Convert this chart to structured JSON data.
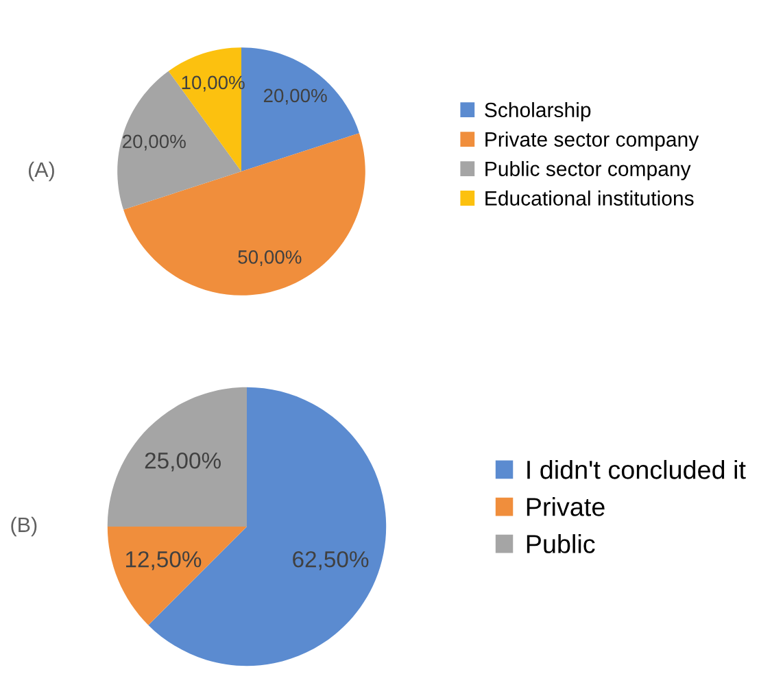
{
  "chart_data": [
    {
      "type": "pie",
      "categories": [
        "Scholarship",
        "Private sector company",
        "Public sector company",
        "Educational institutions"
      ],
      "values": [
        20,
        50,
        20,
        10
      ],
      "colors": [
        "#5b8bd0",
        "#f08e3c",
        "#a5a5a5",
        "#fcc10f"
      ],
      "value_labels": [
        "20,00%",
        "50,00%",
        "20,00%",
        "10,00%"
      ],
      "legend": "right",
      "annotations": [
        "(A)"
      ]
    },
    {
      "type": "pie",
      "categories": [
        "I didn't concluded it",
        "Private",
        "Public"
      ],
      "values": [
        62.5,
        12.5,
        25
      ],
      "colors": [
        "#5b8bd0",
        "#f08e3c",
        "#a5a5a5"
      ],
      "value_labels": [
        "62,50%",
        "12,50%",
        "25,00%"
      ],
      "legend": "right",
      "annotations": [
        "(B)"
      ]
    }
  ]
}
